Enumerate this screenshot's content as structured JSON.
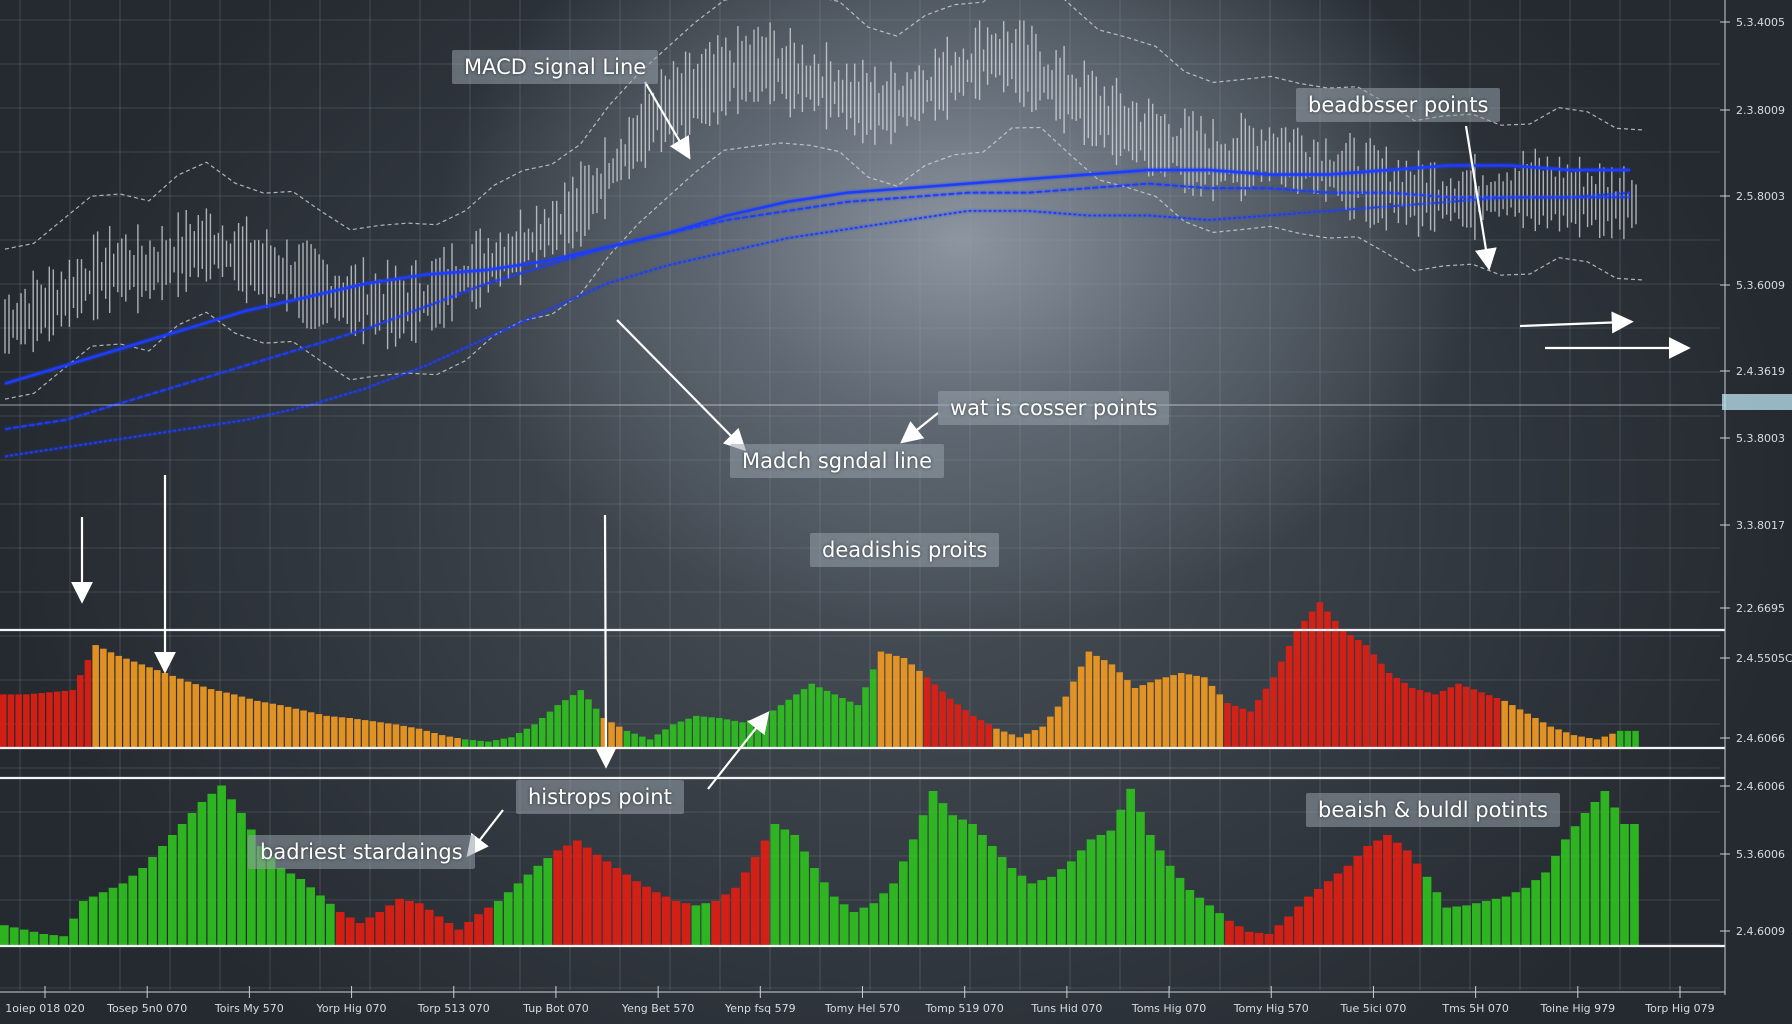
{
  "chart_data": {
    "type": "line",
    "title": "",
    "grid": true,
    "colors": {
      "price_candles": "#d9dde2",
      "signal_lines": "#1c3cff",
      "envelope": "#cfd5db",
      "bull": "#2fbf1f",
      "bear": "#e01e12",
      "neutral": "#f19a21",
      "pointer": "#ffffff"
    },
    "y_tick_labels": [
      "5.3.4005",
      "2.3.8009",
      "2.5.8003",
      "5.3.6009",
      "2.4.3619",
      "5.3.8003",
      "3.3.8017",
      "2.2.6695",
      "2.4.5505C",
      "2.4.6066",
      "2.4.6006",
      "5.3.6006",
      "2.4.6009"
    ],
    "x_tick_labels": [
      "1oiep 018 020",
      "Tosep 5n0 070",
      "Toirs My 570",
      "Yorp Hig 070",
      "Torp 513 070",
      "Tup Bot 070",
      "Yeng Bet 570",
      "Yenp fsq 579",
      "Tomy Hel 570",
      "Tomp 519 070",
      "Tuns Hid 070",
      "Toms Hig 070",
      "Tomy Hig 570",
      "Tue 5ici 070",
      "Tms 5H 070",
      "Toine Hig 979",
      "Torp Hig 079"
    ],
    "annotations": [
      "MACD signal Line",
      "beadbsser points",
      "wat is cosser points",
      "Madch sgndal line",
      "deadishis proits",
      "histrops point",
      "badriest stardaings",
      "beaish & buldl potints"
    ],
    "price_series": {
      "name": "",
      "values": [
        42,
        45,
        48,
        52,
        55,
        54,
        57,
        60,
        58,
        55,
        53,
        50,
        48,
        47,
        46,
        48,
        52,
        55,
        58,
        62,
        66,
        72,
        80,
        88,
        92,
        95,
        98,
        100,
        97,
        95,
        92,
        90,
        92,
        95,
        98,
        102,
        100,
        96,
        92,
        88,
        85,
        82,
        80,
        78,
        79,
        80,
        78,
        76,
        74,
        72,
        71,
        70,
        70,
        71,
        72,
        71,
        70,
        69
      ]
    },
    "signal_series": [
      {
        "name": "",
        "values": [
          30,
          34,
          38,
          42,
          46,
          49,
          52,
          54,
          55,
          57,
          60,
          63,
          67,
          70,
          72,
          73,
          74,
          75,
          76,
          77,
          77,
          76,
          76,
          77,
          78,
          78,
          77,
          77
        ]
      },
      {
        "name": "",
        "values": [
          20,
          22,
          26,
          30,
          34,
          38,
          42,
          47,
          52,
          56,
          60,
          63,
          66,
          68,
          70,
          71,
          72,
          72,
          73,
          74,
          73,
          73,
          72,
          72,
          71,
          71,
          71,
          71
        ]
      },
      {
        "name": "",
        "values": [
          14,
          16,
          18,
          20,
          22,
          25,
          29,
          34,
          40,
          46,
          52,
          56,
          59,
          62,
          64,
          66,
          68,
          68,
          67,
          67,
          66,
          67,
          68,
          69,
          70,
          71,
          71,
          72
        ]
      }
    ],
    "histogram_upper": {
      "values": [
        50,
        50,
        52,
        54,
        96,
        86,
        78,
        70,
        62,
        55,
        50,
        44,
        40,
        35,
        30,
        28,
        25,
        22,
        18,
        12,
        8,
        6,
        10,
        22,
        40,
        54,
        28,
        16,
        8,
        22,
        30,
        28,
        24,
        30,
        45,
        60,
        50,
        40,
        90,
        84,
        66,
        46,
        30,
        18,
        10,
        20,
        48,
        90,
        78,
        56,
        64,
        70,
        66,
        42,
        34,
        66,
        110,
        136,
        110,
        96,
        70,
        56,
        50,
        60,
        52,
        44,
        32,
        20,
        12,
        8,
        16
      ],
      "states": [
        "bear",
        "bear",
        "bear",
        "bear",
        "neutral",
        "neutral",
        "neutral",
        "neutral",
        "neutral",
        "neutral",
        "neutral",
        "neutral",
        "neutral",
        "neutral",
        "neutral",
        "neutral",
        "neutral",
        "neutral",
        "neutral",
        "neutral",
        "bull",
        "bull",
        "bull",
        "bull",
        "bull",
        "bull",
        "neutral",
        "bull",
        "bull",
        "bull",
        "bull",
        "bull",
        "bull",
        "bull",
        "bull",
        "bull",
        "bull",
        "bull",
        "neutral",
        "neutral",
        "bear",
        "bear",
        "bear",
        "neutral",
        "neutral",
        "neutral",
        "neutral",
        "neutral",
        "neutral",
        "neutral",
        "neutral",
        "neutral",
        "neutral",
        "bear",
        "bear",
        "bear",
        "bear",
        "bear",
        "bear",
        "bear",
        "bear",
        "bear",
        "bear",
        "bear",
        "bear",
        "neutral",
        "neutral",
        "neutral",
        "neutral",
        "neutral",
        "bull"
      ]
    },
    "histogram_lower": {
      "values": [
        18,
        14,
        10,
        8,
        40,
        48,
        56,
        70,
        90,
        110,
        130,
        145,
        120,
        90,
        70,
        60,
        45,
        30,
        20,
        30,
        42,
        38,
        26,
        14,
        28,
        40,
        56,
        72,
        86,
        95,
        82,
        70,
        58,
        48,
        40,
        36,
        40,
        52,
        80,
        110,
        100,
        70,
        44,
        30,
        38,
        56,
        96,
        140,
        118,
        110,
        90,
        70,
        56,
        62,
        76,
        96,
        104,
        142,
        100,
        72,
        50,
        36,
        22,
        12,
        10,
        26,
        44,
        58,
        72,
        90,
        100,
        86,
        62,
        34,
        36,
        40,
        44,
        52,
        66,
        96,
        120,
        140,
        110
      ]
    }
  }
}
